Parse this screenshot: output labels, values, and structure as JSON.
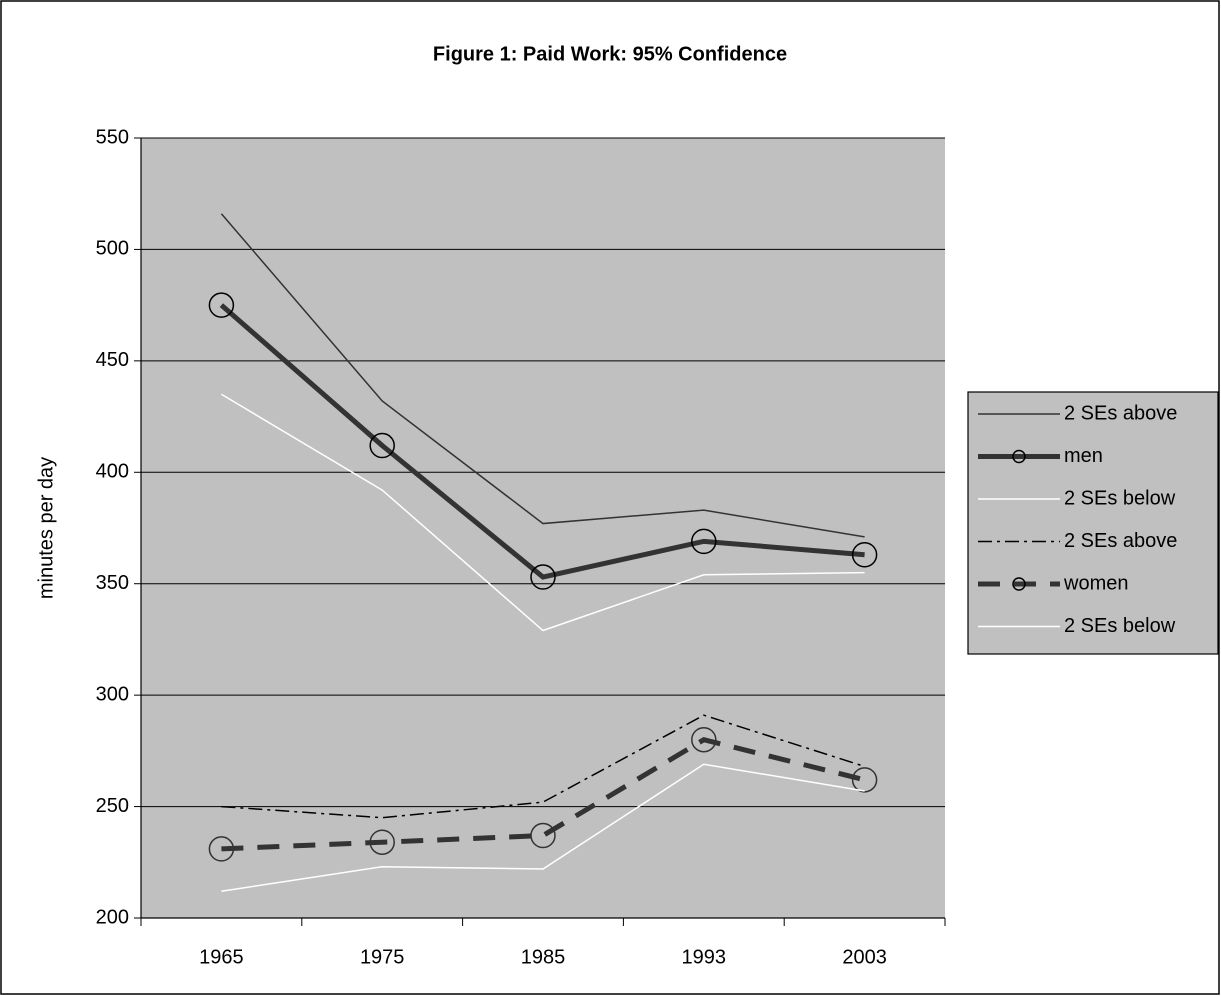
{
  "chart_data": {
    "type": "line",
    "title": "Figure 1:  Paid Work: 95% Confidence",
    "y_label": "minutes per day",
    "categories": [
      "1965",
      "1975",
      "1985",
      "1993",
      "2003"
    ],
    "ylim": [
      200,
      550
    ],
    "yticks": [
      200,
      250,
      300,
      350,
      400,
      450,
      500,
      550
    ],
    "grid": true,
    "background": "#c0c0c0",
    "legend": "right",
    "series": [
      {
        "name": "2 SEs above",
        "color": "#333333",
        "line_style": "solid",
        "line_width": 1.5,
        "marker": null,
        "values": [
          516,
          432,
          377,
          383,
          371
        ]
      },
      {
        "name": "men",
        "color": "#333333",
        "line_style": "solid",
        "line_width": 5,
        "marker": "circle",
        "values": [
          475,
          412,
          353,
          369,
          363
        ]
      },
      {
        "name": "2 SEs below",
        "color": "#ffffff",
        "line_style": "solid",
        "line_width": 1.5,
        "marker": null,
        "values": [
          435,
          392,
          329,
          354,
          355
        ]
      },
      {
        "name": "2 SEs above",
        "color": "#000000",
        "line_style": "dashdot",
        "line_width": 1.5,
        "marker": null,
        "values": [
          250,
          245,
          252,
          291,
          268
        ]
      },
      {
        "name": "women",
        "color": "#333333",
        "line_style": "dash",
        "line_width": 5,
        "marker": "circle",
        "values": [
          231,
          234,
          237,
          280,
          262
        ]
      },
      {
        "name": "2 SEs below",
        "color": "#ffffff",
        "line_style": "solid",
        "line_width": 1.5,
        "marker": null,
        "values": [
          212,
          223,
          222,
          269,
          257
        ]
      }
    ]
  }
}
